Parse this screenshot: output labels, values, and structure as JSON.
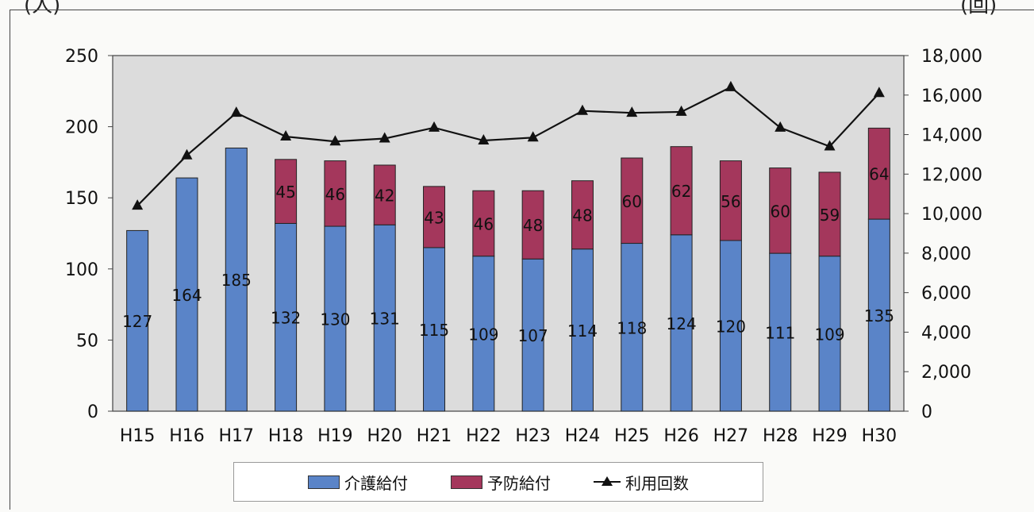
{
  "units": {
    "left": "(人)",
    "right": "(回)"
  },
  "chart_data": {
    "type": "bar",
    "categories": [
      "H15",
      "H16",
      "H17",
      "H18",
      "H19",
      "H20",
      "H21",
      "H22",
      "H23",
      "H24",
      "H25",
      "H26",
      "H27",
      "H28",
      "H29",
      "H30"
    ],
    "series": [
      {
        "name": "介護給付",
        "kind": "bar",
        "stack": "users",
        "axis": "left",
        "color": "#5a84c8",
        "values": [
          127,
          164,
          185,
          132,
          130,
          131,
          115,
          109,
          107,
          114,
          118,
          124,
          120,
          111,
          109,
          135
        ]
      },
      {
        "name": "予防給付",
        "kind": "bar",
        "stack": "users",
        "axis": "left",
        "color": "#a4375c",
        "values": [
          null,
          null,
          null,
          45,
          46,
          42,
          43,
          46,
          48,
          48,
          60,
          62,
          56,
          60,
          59,
          64
        ]
      },
      {
        "name": "利用回数",
        "kind": "line",
        "axis": "right",
        "color": "#111111",
        "marker": "triangle",
        "values": [
          10400,
          12950,
          15100,
          13900,
          13650,
          13800,
          14350,
          13700,
          13850,
          15200,
          15100,
          15150,
          16400,
          14350,
          13400,
          16100
        ]
      }
    ],
    "y_left": {
      "ylim": [
        0,
        250
      ],
      "ticks": [
        0,
        50,
        100,
        150,
        200,
        250
      ]
    },
    "y_right": {
      "ylim": [
        0,
        18000
      ],
      "ticks": [
        "0",
        "2,000",
        "4,000",
        "6,000",
        "8,000",
        "10,000",
        "12,000",
        "14,000",
        "16,000",
        "18,000"
      ]
    },
    "legend_position": "bottom",
    "grid": false
  }
}
